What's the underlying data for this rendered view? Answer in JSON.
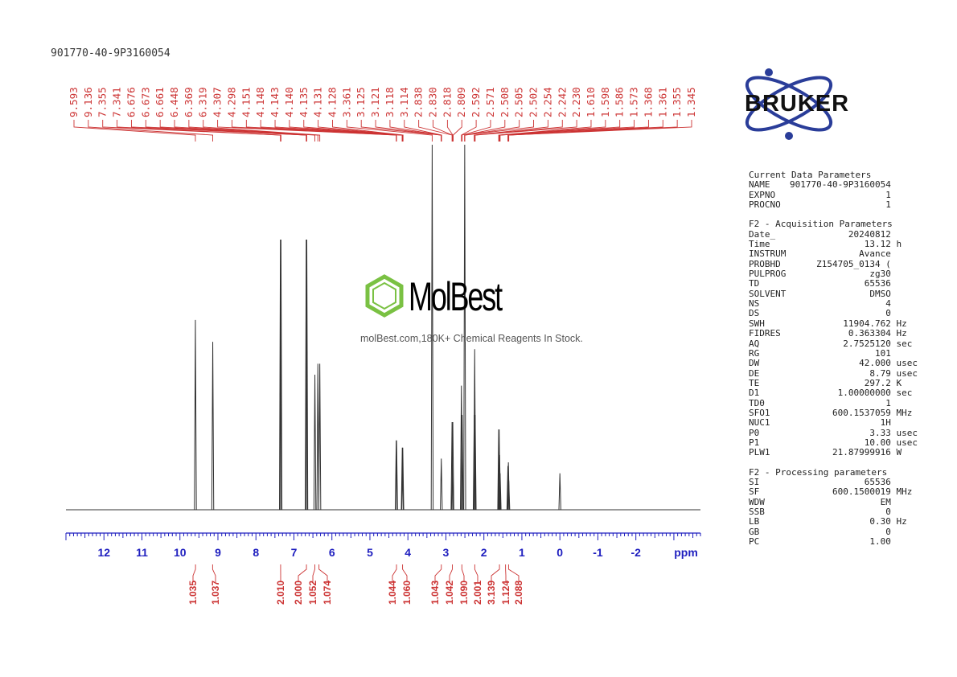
{
  "sample_id": "901770-40-9P3160054",
  "brand": "BRUKER",
  "watermark": {
    "name": "MolBest",
    "tagline": "molBest.com,180K+ Chemical Reagents In Stock."
  },
  "colors": {
    "peak_labels": "#cc3333",
    "axis": "#1f1fbf",
    "integral": "#cc3333",
    "spectrum": "#333333",
    "logo": "#2a3d99",
    "watermark_green": "#7ac143"
  },
  "chart_data": {
    "type": "line",
    "xlabel": "ppm",
    "xlim": [
      13.0,
      -3.7
    ],
    "x_reversed": true,
    "ticks": [
      12,
      11,
      10,
      9,
      8,
      7,
      6,
      5,
      4,
      3,
      2,
      1,
      0,
      -1,
      -2
    ],
    "tick_labels": [
      "12",
      "11",
      "10",
      "9",
      "8",
      "7",
      "6",
      "5",
      "4",
      "3",
      "2",
      "1",
      "0",
      "-1",
      "-2"
    ],
    "peak_labels": [
      "9.593",
      "9.136",
      "7.355",
      "7.341",
      "6.676",
      "6.673",
      "6.661",
      "6.448",
      "6.369",
      "6.319",
      "4.307",
      "4.298",
      "4.151",
      "4.148",
      "4.143",
      "4.140",
      "4.135",
      "4.131",
      "4.128",
      "3.361",
      "3.125",
      "3.121",
      "3.118",
      "3.114",
      "2.838",
      "2.830",
      "2.818",
      "2.809",
      "2.592",
      "2.571",
      "2.508",
      "2.505",
      "2.502",
      "2.254",
      "2.242",
      "2.230",
      "1.610",
      "1.598",
      "1.586",
      "1.573",
      "1.368",
      "1.361",
      "1.355",
      "1.345"
    ],
    "integrals": [
      {
        "ppm": 9.59,
        "value": "1.035"
      },
      {
        "ppm": 9.14,
        "value": "1.037"
      },
      {
        "ppm": 7.35,
        "value": "2.010"
      },
      {
        "ppm": 6.67,
        "value": "2.000"
      },
      {
        "ppm": 6.45,
        "value": "1.052"
      },
      {
        "ppm": 6.34,
        "value": "1.074"
      },
      {
        "ppm": 4.3,
        "value": "1.044"
      },
      {
        "ppm": 4.14,
        "value": "1.060"
      },
      {
        "ppm": 3.12,
        "value": "1.043"
      },
      {
        "ppm": 2.83,
        "value": "1.042"
      },
      {
        "ppm": 2.58,
        "value": "1.090"
      },
      {
        "ppm": 2.24,
        "value": "2.001"
      },
      {
        "ppm": 1.59,
        "value": "3.139"
      },
      {
        "ppm": 1.43,
        "value": "1.124"
      },
      {
        "ppm": 1.35,
        "value": "2.088"
      }
    ],
    "peaks": [
      {
        "ppm": 9.593,
        "intensity": 0.52
      },
      {
        "ppm": 9.136,
        "intensity": 0.46
      },
      {
        "ppm": 7.355,
        "intensity": 0.74
      },
      {
        "ppm": 7.341,
        "intensity": 0.74
      },
      {
        "ppm": 6.676,
        "intensity": 0.74
      },
      {
        "ppm": 6.661,
        "intensity": 0.74
      },
      {
        "ppm": 6.448,
        "intensity": 0.37
      },
      {
        "ppm": 6.369,
        "intensity": 0.4
      },
      {
        "ppm": 6.319,
        "intensity": 0.4
      },
      {
        "ppm": 4.307,
        "intensity": 0.19
      },
      {
        "ppm": 4.298,
        "intensity": 0.19
      },
      {
        "ppm": 4.148,
        "intensity": 0.17
      },
      {
        "ppm": 4.135,
        "intensity": 0.17
      },
      {
        "ppm": 3.361,
        "intensity": 1.0
      },
      {
        "ppm": 3.121,
        "intensity": 0.14
      },
      {
        "ppm": 2.838,
        "intensity": 0.24
      },
      {
        "ppm": 2.818,
        "intensity": 0.24
      },
      {
        "ppm": 2.592,
        "intensity": 0.34
      },
      {
        "ppm": 2.571,
        "intensity": 0.26
      },
      {
        "ppm": 2.505,
        "intensity": 1.0
      },
      {
        "ppm": 2.254,
        "intensity": 0.26
      },
      {
        "ppm": 2.242,
        "intensity": 0.44
      },
      {
        "ppm": 2.23,
        "intensity": 0.26
      },
      {
        "ppm": 1.61,
        "intensity": 0.22
      },
      {
        "ppm": 1.598,
        "intensity": 0.22
      },
      {
        "ppm": 1.586,
        "intensity": 0.15
      },
      {
        "ppm": 1.573,
        "intensity": 0.1
      },
      {
        "ppm": 1.368,
        "intensity": 0.12
      },
      {
        "ppm": 1.355,
        "intensity": 0.13
      },
      {
        "ppm": 1.345,
        "intensity": 0.08
      },
      {
        "ppm": 0.0,
        "intensity": 0.1
      }
    ]
  },
  "parameters": [
    {
      "title": "Current Data Parameters",
      "rows": [
        {
          "k": "NAME",
          "v": "901770-40-9P3160054",
          "u": ""
        },
        {
          "k": "EXPNO",
          "v": "1",
          "u": ""
        },
        {
          "k": "PROCNO",
          "v": "1",
          "u": ""
        }
      ]
    },
    {
      "title": "F2 - Acquisition Parameters",
      "rows": [
        {
          "k": "Date_",
          "v": "20240812",
          "u": ""
        },
        {
          "k": "Time",
          "v": "13.12",
          "u": "h"
        },
        {
          "k": "INSTRUM",
          "v": "Avance",
          "u": ""
        },
        {
          "k": "PROBHD",
          "v": "Z154705_0134 (",
          "u": ""
        },
        {
          "k": "PULPROG",
          "v": "zg30",
          "u": ""
        },
        {
          "k": "TD",
          "v": "65536",
          "u": ""
        },
        {
          "k": "SOLVENT",
          "v": "DMSO",
          "u": ""
        },
        {
          "k": "NS",
          "v": "4",
          "u": ""
        },
        {
          "k": "DS",
          "v": "0",
          "u": ""
        },
        {
          "k": "SWH",
          "v": "11904.762",
          "u": "Hz"
        },
        {
          "k": "FIDRES",
          "v": "0.363304",
          "u": "Hz"
        },
        {
          "k": "AQ",
          "v": "2.7525120",
          "u": "sec"
        },
        {
          "k": "RG",
          "v": "101",
          "u": ""
        },
        {
          "k": "DW",
          "v": "42.000",
          "u": "usec"
        },
        {
          "k": "DE",
          "v": "8.79",
          "u": "usec"
        },
        {
          "k": "TE",
          "v": "297.2",
          "u": "K"
        },
        {
          "k": "D1",
          "v": "1.00000000",
          "u": "sec"
        },
        {
          "k": "TD0",
          "v": "1",
          "u": ""
        },
        {
          "k": "SFO1",
          "v": "600.1537059",
          "u": "MHz"
        },
        {
          "k": "NUC1",
          "v": "1H",
          "u": ""
        },
        {
          "k": "P0",
          "v": "3.33",
          "u": "usec"
        },
        {
          "k": "P1",
          "v": "10.00",
          "u": "usec"
        },
        {
          "k": "PLW1",
          "v": "21.87999916",
          "u": "W"
        }
      ]
    },
    {
      "title": "F2 - Processing parameters",
      "rows": [
        {
          "k": "SI",
          "v": "65536",
          "u": ""
        },
        {
          "k": "SF",
          "v": "600.1500019",
          "u": "MHz"
        },
        {
          "k": "WDW",
          "v": "EM",
          "u": ""
        },
        {
          "k": "SSB",
          "v": "0",
          "u": ""
        },
        {
          "k": "LB",
          "v": "0.30",
          "u": "Hz"
        },
        {
          "k": "GB",
          "v": "0",
          "u": ""
        },
        {
          "k": "PC",
          "v": "1.00",
          "u": ""
        }
      ]
    }
  ]
}
